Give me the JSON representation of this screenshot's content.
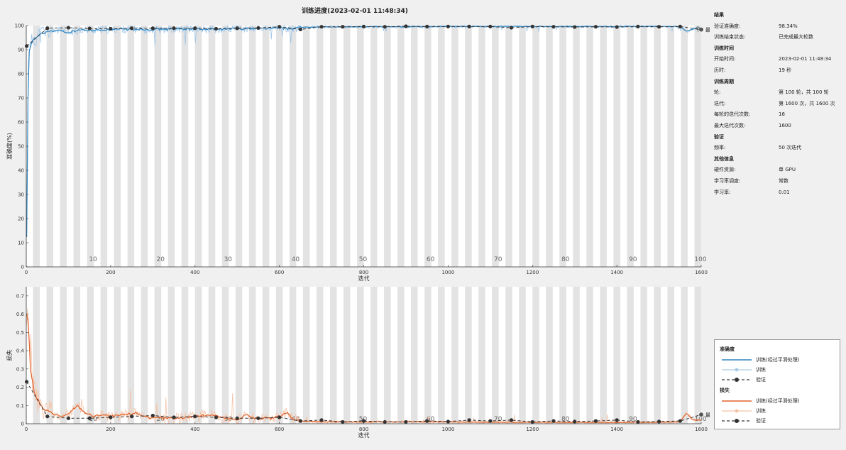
{
  "title": "训练进度(2023-02-01 11:48:34)",
  "colors": {
    "accuracy": "#2e86c1",
    "loss": "#e0622a",
    "validation": "#333333",
    "stripe": "#e3e3e3"
  },
  "info": {
    "sections": [
      {
        "title": "结果",
        "rows": [
          {
            "k": "验证准确度:",
            "v": "98.34%"
          },
          {
            "k": "训练结束状态:",
            "v": "已完成最大轮数"
          }
        ]
      },
      {
        "title": "训练时间",
        "rows": [
          {
            "k": "开始时间:",
            "v": "2023-02-01 11:48:34"
          },
          {
            "k": "历时:",
            "v": "19 秒"
          }
        ]
      },
      {
        "title": "训练周期",
        "rows": [
          {
            "k": "轮:",
            "v": "第 100 轮，共 100 轮"
          },
          {
            "k": "迭代:",
            "v": "第 1600 次，共 1600 次"
          },
          {
            "k": "每轮的迭代次数:",
            "v": "16"
          },
          {
            "k": "最大迭代次数:",
            "v": "1600"
          }
        ]
      },
      {
        "title": "验证",
        "rows": [
          {
            "k": "频率:",
            "v": "50 次迭代"
          }
        ]
      },
      {
        "title": "其他信息",
        "rows": [
          {
            "k": "硬件资源:",
            "v": "单 GPU"
          },
          {
            "k": "学习率调度:",
            "v": "常数"
          },
          {
            "k": "学习率:",
            "v": "0.01"
          }
        ]
      }
    ]
  },
  "legend": {
    "acc_title": "准确度",
    "loss_title": "损失",
    "smoothed": "训练(经过平滑处理)",
    "train": "训练",
    "validation": "验证"
  },
  "final_label": "最终",
  "chart_data": [
    {
      "type": "line",
      "xlabel": "迭代",
      "ylabel": "准确度(%)",
      "xlim": [
        0,
        1600
      ],
      "ylim": [
        0,
        100
      ],
      "xticks": [
        0,
        200,
        400,
        600,
        800,
        1000,
        1200,
        1400,
        1600
      ],
      "yticks": [
        0,
        10,
        20,
        30,
        40,
        50,
        60,
        70,
        80,
        90,
        100
      ],
      "epoch_labels": [
        10,
        20,
        30,
        40,
        50,
        60,
        70,
        80,
        90,
        100
      ],
      "smoothed_train": [
        [
          1,
          12
        ],
        [
          5,
          88
        ],
        [
          15,
          94
        ],
        [
          30,
          96
        ],
        [
          50,
          97.5
        ],
        [
          75,
          98
        ],
        [
          100,
          97
        ],
        [
          125,
          98.2
        ],
        [
          150,
          98
        ],
        [
          200,
          98.3
        ],
        [
          250,
          98.5
        ],
        [
          300,
          98.4
        ],
        [
          350,
          98.6
        ],
        [
          400,
          98.6
        ],
        [
          450,
          98.4
        ],
        [
          500,
          98.7
        ],
        [
          550,
          98.8
        ],
        [
          600,
          99
        ],
        [
          630,
          98.6
        ],
        [
          650,
          99.3
        ],
        [
          700,
          99.4
        ],
        [
          800,
          99.5
        ],
        [
          900,
          99.5
        ],
        [
          1000,
          99.6
        ],
        [
          1100,
          99.6
        ],
        [
          1200,
          99.6
        ],
        [
          1300,
          99.6
        ],
        [
          1400,
          99.6
        ],
        [
          1500,
          99.6
        ],
        [
          1550,
          99.5
        ],
        [
          1565,
          97.5
        ],
        [
          1580,
          98.5
        ],
        [
          1600,
          99
        ]
      ],
      "validation": [
        [
          1,
          91.5
        ],
        [
          50,
          98.9
        ],
        [
          100,
          99.1
        ],
        [
          150,
          98.8
        ],
        [
          200,
          98.7
        ],
        [
          250,
          98.9
        ],
        [
          300,
          98.9
        ],
        [
          350,
          98.9
        ],
        [
          400,
          98.9
        ],
        [
          450,
          98.7
        ],
        [
          500,
          98.9
        ],
        [
          550,
          99
        ],
        [
          600,
          99.5
        ],
        [
          650,
          98.4
        ],
        [
          700,
          99.5
        ],
        [
          750,
          99.5
        ],
        [
          800,
          99.6
        ],
        [
          850,
          99.5
        ],
        [
          900,
          99.7
        ],
        [
          950,
          99.6
        ],
        [
          1000,
          99.6
        ],
        [
          1050,
          99.6
        ],
        [
          1100,
          99.6
        ],
        [
          1150,
          99.1
        ],
        [
          1200,
          99.6
        ],
        [
          1250,
          99.5
        ],
        [
          1300,
          99.4
        ],
        [
          1350,
          99.5
        ],
        [
          1400,
          99.4
        ],
        [
          1450,
          99.6
        ],
        [
          1500,
          99.5
        ],
        [
          1550,
          99.6
        ],
        [
          1600,
          98.34
        ]
      ]
    },
    {
      "type": "line",
      "xlabel": "迭代",
      "ylabel": "损失",
      "xlim": [
        0,
        1600
      ],
      "ylim": [
        0,
        0.75
      ],
      "xticks": [
        0,
        200,
        400,
        600,
        800,
        1000,
        1200,
        1400,
        1600
      ],
      "yticks": [
        0,
        0.1,
        0.2,
        0.3,
        0.4,
        0.5,
        0.6,
        0.7
      ],
      "epoch_labels": [
        10,
        20,
        30,
        40,
        50,
        60,
        70,
        80,
        90,
        100
      ],
      "smoothed_train": [
        [
          1,
          0.6
        ],
        [
          5,
          0.55
        ],
        [
          10,
          0.3
        ],
        [
          20,
          0.16
        ],
        [
          40,
          0.08
        ],
        [
          60,
          0.06
        ],
        [
          80,
          0.04
        ],
        [
          100,
          0.05
        ],
        [
          120,
          0.1
        ],
        [
          140,
          0.06
        ],
        [
          160,
          0.04
        ],
        [
          180,
          0.05
        ],
        [
          200,
          0.04
        ],
        [
          240,
          0.05
        ],
        [
          260,
          0.06
        ],
        [
          280,
          0.04
        ],
        [
          300,
          0.03
        ],
        [
          350,
          0.03
        ],
        [
          400,
          0.04
        ],
        [
          440,
          0.05
        ],
        [
          470,
          0.03
        ],
        [
          500,
          0.02
        ],
        [
          520,
          0.05
        ],
        [
          540,
          0.03
        ],
        [
          560,
          0.03
        ],
        [
          580,
          0.03
        ],
        [
          600,
          0.04
        ],
        [
          620,
          0.06
        ],
        [
          630,
          0.03
        ],
        [
          650,
          0.015
        ],
        [
          700,
          0.01
        ],
        [
          800,
          0.01
        ],
        [
          900,
          0.01
        ],
        [
          1000,
          0.01
        ],
        [
          1100,
          0.008
        ],
        [
          1200,
          0.008
        ],
        [
          1300,
          0.007
        ],
        [
          1400,
          0.007
        ],
        [
          1500,
          0.008
        ],
        [
          1550,
          0.01
        ],
        [
          1565,
          0.06
        ],
        [
          1580,
          0.02
        ],
        [
          1600,
          0.02
        ]
      ],
      "validation": [
        [
          1,
          0.23
        ],
        [
          50,
          0.04
        ],
        [
          100,
          0.03
        ],
        [
          150,
          0.03
        ],
        [
          200,
          0.035
        ],
        [
          250,
          0.04
        ],
        [
          300,
          0.045
        ],
        [
          350,
          0.035
        ],
        [
          400,
          0.04
        ],
        [
          450,
          0.035
        ],
        [
          500,
          0.03
        ],
        [
          550,
          0.03
        ],
        [
          600,
          0.035
        ],
        [
          650,
          0.015
        ],
        [
          700,
          0.02
        ],
        [
          750,
          0.01
        ],
        [
          800,
          0.015
        ],
        [
          850,
          0.01
        ],
        [
          900,
          0.01
        ],
        [
          950,
          0.015
        ],
        [
          1000,
          0.012
        ],
        [
          1050,
          0.02
        ],
        [
          1100,
          0.015
        ],
        [
          1150,
          0.02
        ],
        [
          1200,
          0.01
        ],
        [
          1250,
          0.015
        ],
        [
          1300,
          0.012
        ],
        [
          1350,
          0.015
        ],
        [
          1400,
          0.02
        ],
        [
          1450,
          0.01
        ],
        [
          1500,
          0.012
        ],
        [
          1550,
          0.015
        ],
        [
          1600,
          0.05
        ]
      ]
    }
  ]
}
